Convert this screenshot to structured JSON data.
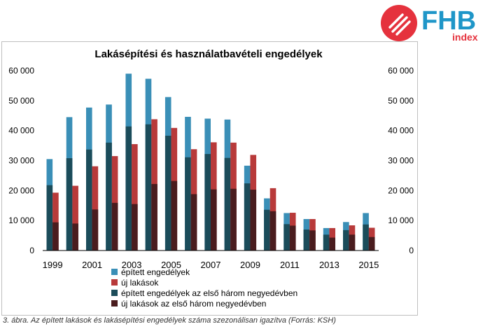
{
  "brand": {
    "name": "FHB",
    "sub": "index",
    "colors": {
      "red": "#e5323d",
      "blue": "#1f96c8"
    },
    "icon": "striped-circle-logo-icon"
  },
  "caption": "3. ábra. Az épített lakások és lakásépítési engedélyek száma szezonálisan igazítva (Forrás: KSH)",
  "chart_data": {
    "type": "bar",
    "title": "Lakásépítési és használatbavételi engedélyek",
    "x": [
      1999,
      2000,
      2001,
      2002,
      2003,
      2004,
      2005,
      2006,
      2007,
      2008,
      2009,
      2010,
      2011,
      2012,
      2013,
      2014,
      2015
    ],
    "xticks": [
      "1999",
      "2001",
      "2003",
      "2005",
      "2007",
      "2009",
      "2011",
      "2013",
      "2015"
    ],
    "ylim": [
      0,
      60000
    ],
    "yticks": [
      "0",
      "10 000",
      "20 000",
      "30 000",
      "40 000",
      "50 000",
      "60 000"
    ],
    "secondary_axis": true,
    "legend_position": "bottom",
    "grid": false,
    "series": [
      {
        "name": "épített engedélyek",
        "color": "#3a8fb7",
        "values": [
          30500,
          44500,
          47700,
          48700,
          59000,
          57300,
          51200,
          44600,
          44000,
          43700,
          28300,
          17400,
          12500,
          10500,
          7500,
          9500,
          12500
        ]
      },
      {
        "name": "új lakások",
        "color": "#b83a3a",
        "values": [
          19300,
          21600,
          28100,
          31500,
          35500,
          43800,
          40900,
          33800,
          36100,
          36000,
          31900,
          20800,
          12600,
          10500,
          7500,
          8400,
          7600
        ]
      },
      {
        "name": "épített engedélyek az első három negyedévben",
        "color": "#1b4c5a",
        "values": [
          21800,
          30800,
          33700,
          36000,
          41400,
          42100,
          38300,
          31100,
          32200,
          30900,
          22400,
          13600,
          8800,
          7000,
          5300,
          6800,
          8700
        ]
      },
      {
        "name": "új lakások az első három negyedévben",
        "color": "#4a1c1e",
        "values": [
          9400,
          9000,
          13700,
          15900,
          15500,
          22200,
          23200,
          18800,
          20400,
          20600,
          20300,
          13100,
          8300,
          6700,
          4300,
          5300,
          4500
        ]
      }
    ]
  }
}
